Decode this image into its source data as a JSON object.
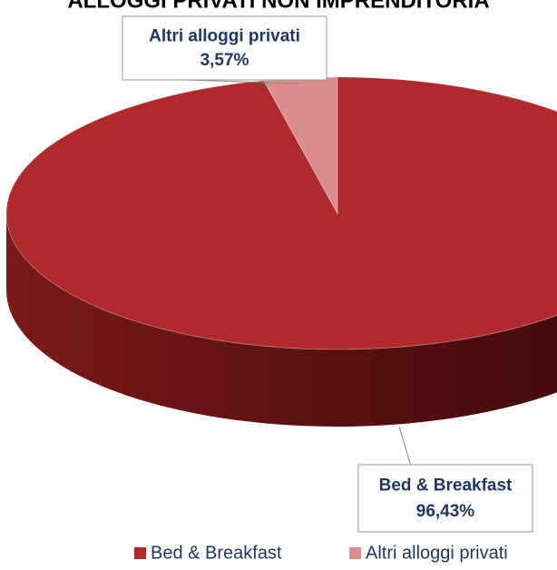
{
  "chart_data": {
    "type": "pie",
    "three_d": true,
    "title": "ALLOGGI PRIVATI NON IMPRENDITORIA",
    "categories": [
      "Bed & Breakfast",
      "Altri alloggi privati"
    ],
    "values": [
      96.43,
      3.57
    ],
    "value_labels": [
      "96,43%",
      "3,57%"
    ],
    "colors": [
      "#b0292b",
      "#dc8c8c"
    ],
    "legend": "bottom"
  }
}
